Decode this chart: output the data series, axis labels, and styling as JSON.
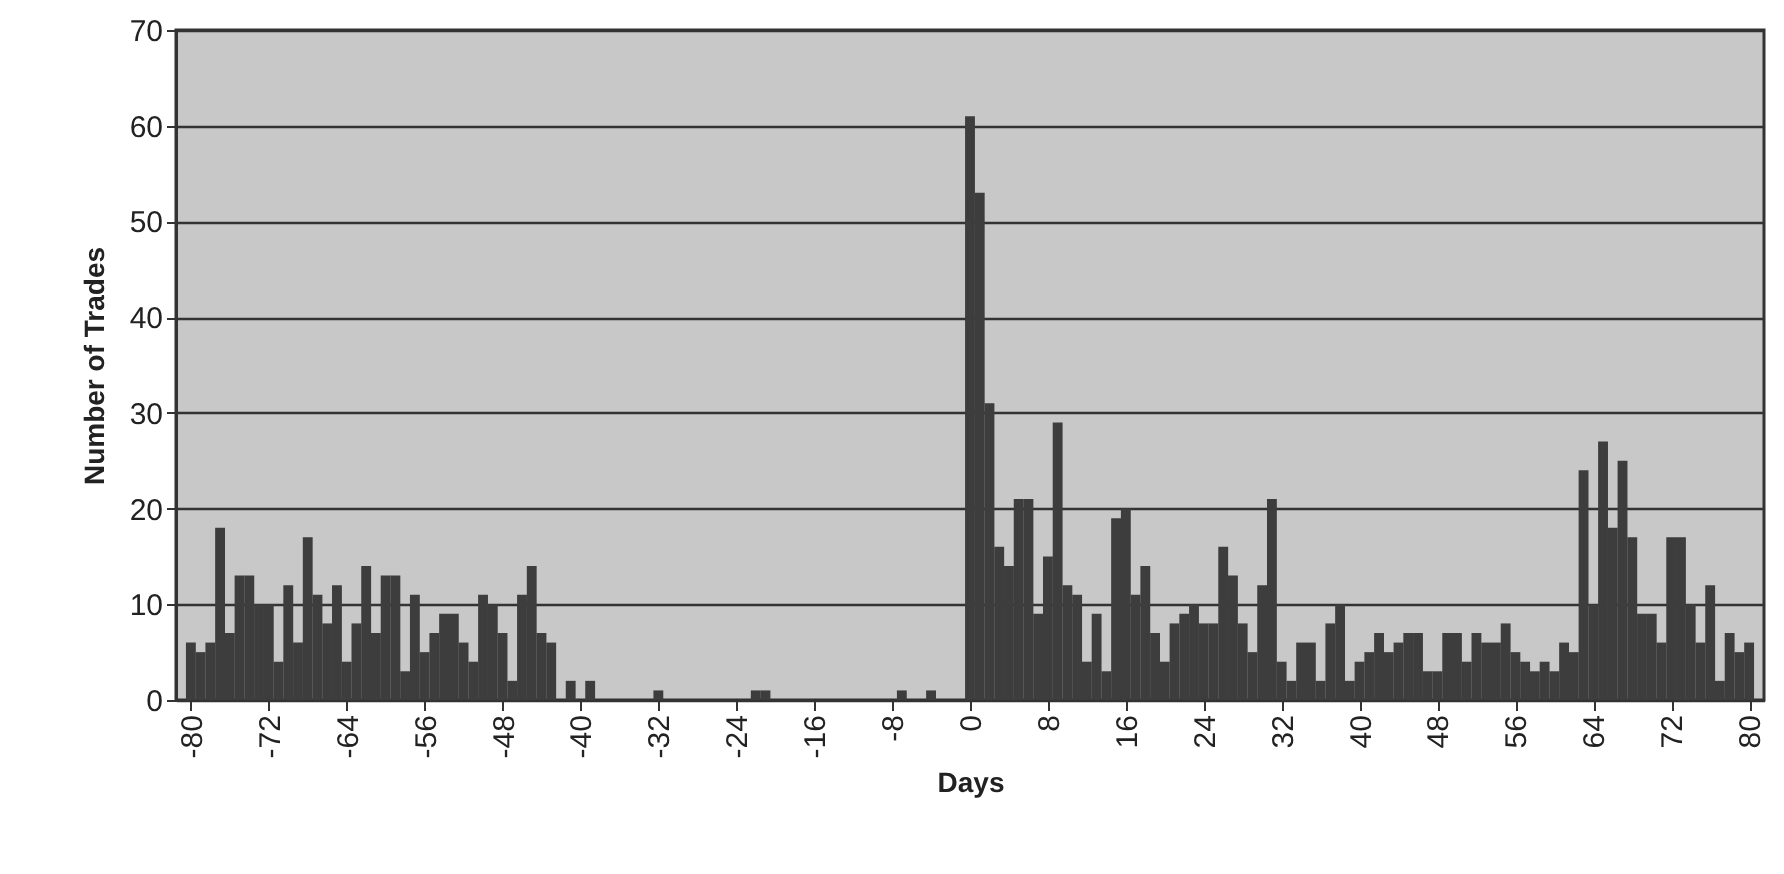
{
  "chart_data": {
    "type": "bar",
    "xlabel": "Days",
    "ylabel": "Number of Trades",
    "x": [
      -80,
      -79,
      -78,
      -77,
      -76,
      -75,
      -74,
      -73,
      -72,
      -71,
      -70,
      -69,
      -68,
      -67,
      -66,
      -65,
      -64,
      -63,
      -62,
      -61,
      -60,
      -59,
      -58,
      -57,
      -56,
      -55,
      -54,
      -53,
      -52,
      -51,
      -50,
      -49,
      -48,
      -47,
      -46,
      -45,
      -44,
      -43,
      -42,
      -41,
      -40,
      -39,
      -38,
      -37,
      -36,
      -35,
      -34,
      -33,
      -32,
      -31,
      -30,
      -29,
      -28,
      -27,
      -26,
      -25,
      -24,
      -23,
      -22,
      -21,
      -20,
      -19,
      -18,
      -17,
      -16,
      -15,
      -14,
      -13,
      -12,
      -11,
      -10,
      -9,
      -8,
      -7,
      -6,
      -5,
      -4,
      -3,
      -2,
      -1,
      0,
      1,
      2,
      3,
      4,
      5,
      6,
      7,
      8,
      9,
      10,
      11,
      12,
      13,
      14,
      15,
      16,
      17,
      18,
      19,
      20,
      21,
      22,
      23,
      24,
      25,
      26,
      27,
      28,
      29,
      30,
      31,
      32,
      33,
      34,
      35,
      36,
      37,
      38,
      39,
      40,
      41,
      42,
      43,
      44,
      45,
      46,
      47,
      48,
      49,
      50,
      51,
      52,
      53,
      54,
      55,
      56,
      57,
      58,
      59,
      60,
      61,
      62,
      63,
      64,
      65,
      66,
      67,
      68,
      69,
      70,
      71,
      72,
      73,
      74,
      75,
      76,
      77,
      78,
      79,
      80
    ],
    "values": [
      6,
      5,
      6,
      18,
      7,
      13,
      13,
      10,
      10,
      4,
      12,
      6,
      17,
      11,
      8,
      12,
      4,
      8,
      14,
      7,
      13,
      13,
      3,
      11,
      5,
      7,
      9,
      9,
      6,
      4,
      11,
      10,
      7,
      2,
      11,
      14,
      7,
      6,
      0,
      2,
      0,
      2,
      0,
      0,
      0,
      0,
      0,
      0,
      1,
      0,
      0,
      0,
      0,
      0,
      0,
      0,
      0,
      0,
      1,
      1,
      0,
      0,
      0,
      0,
      0,
      0,
      0,
      0,
      0,
      0,
      0,
      0,
      0,
      1,
      0,
      0,
      1,
      0,
      0,
      0,
      61,
      53,
      31,
      16,
      14,
      21,
      21,
      9,
      15,
      29,
      12,
      11,
      4,
      9,
      3,
      19,
      20,
      11,
      14,
      7,
      4,
      8,
      9,
      10,
      8,
      8,
      16,
      13,
      8,
      5,
      12,
      21,
      4,
      2,
      6,
      6,
      2,
      8,
      10,
      2,
      4,
      5,
      7,
      5,
      6,
      7,
      7,
      3,
      3,
      7,
      7,
      4,
      7,
      6,
      6,
      8,
      5,
      4,
      3,
      4,
      3,
      6,
      5,
      24,
      10,
      27,
      18,
      25,
      17,
      9,
      9,
      6,
      17,
      17,
      10,
      6,
      12,
      2,
      7,
      5,
      6
    ],
    "color": "#3d3d3d",
    "xlim": [
      -80.5,
      80.5
    ],
    "xticks": [
      -80,
      -72,
      -64,
      -56,
      -48,
      -40,
      -32,
      -24,
      -16,
      -8,
      0,
      8,
      16,
      24,
      32,
      40,
      48,
      56,
      64,
      72,
      80
    ],
    "ylim": [
      0,
      70
    ],
    "yticks": [
      0,
      10,
      20,
      30,
      40,
      50,
      60,
      70
    ],
    "grid": "y"
  }
}
